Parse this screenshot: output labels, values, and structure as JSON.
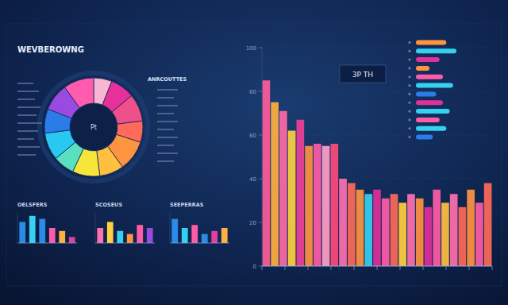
{
  "header": {
    "title": "WEVBEROWNG"
  },
  "chart_data": [
    {
      "type": "pie",
      "title": "ANRCOUTTES",
      "annotations": [
        "Pt"
      ],
      "values": [
        6,
        8,
        9,
        7,
        10,
        8,
        9,
        7,
        9,
        8,
        9,
        10
      ],
      "colors": [
        "#f9b6d2",
        "#e8309a",
        "#f0508a",
        "#ff6a5a",
        "#ff9440",
        "#ffc040",
        "#f6e63a",
        "#58e0c0",
        "#28c8f0",
        "#2c7ce8",
        "#9a4ae0",
        "#ff5cb0"
      ]
    },
    {
      "type": "bar",
      "title": "OELSFERS",
      "categories": [
        null,
        null,
        null,
        null,
        null,
        null
      ],
      "values": [
        7,
        9,
        8,
        5,
        4,
        2
      ],
      "ylim": [
        0,
        10
      ],
      "tick_labels": false,
      "colors": [
        "#2b8ce8",
        "#36d0f0",
        "#2b8ce8",
        "#ff5ca8",
        "#ffb040",
        "#e040a0"
      ]
    },
    {
      "type": "bar",
      "title": "SCOSEUS",
      "categories": [
        null,
        null,
        null,
        null,
        null,
        null
      ],
      "values": [
        5,
        7,
        4,
        3,
        6,
        5
      ],
      "ylim": [
        0,
        10
      ],
      "tick_labels": false,
      "colors": [
        "#ff70b0",
        "#ffd040",
        "#36d0f0",
        "#ff9440",
        "#ff5ca8",
        "#9a4ae0"
      ]
    },
    {
      "type": "bar",
      "title": "SEEPERRAS",
      "categories": [
        null,
        null,
        null,
        null,
        null,
        null
      ],
      "values": [
        8,
        5,
        6,
        3,
        4,
        5
      ],
      "ylim": [
        0,
        10
      ],
      "tick_labels": false,
      "colors": [
        "#2b8ce8",
        "#36d0f0",
        "#ff5ca8",
        "#2b8ce8",
        "#e040a0",
        "#ffb040"
      ]
    },
    {
      "type": "bar",
      "annotations": [
        "3P TH"
      ],
      "categories": [
        null,
        null,
        null,
        null,
        null,
        null,
        null,
        null,
        null,
        null,
        null,
        null,
        null,
        null,
        null,
        null,
        null,
        null,
        null,
        null,
        null,
        null,
        null,
        null,
        null,
        null,
        null
      ],
      "values": [
        85,
        75,
        71,
        62,
        67,
        55,
        56,
        55,
        56,
        40,
        38,
        35,
        33,
        35,
        31,
        33,
        29,
        33,
        31,
        27,
        35,
        29,
        33,
        27,
        35,
        29,
        38
      ],
      "colors": [
        "#ff5c9a",
        "#ffb040",
        "#ff6aa8",
        "#ffd040",
        "#f0409a",
        "#ff9440",
        "#ff5ca8",
        "#ffa0c8",
        "#ff4a7a",
        "#ff70b0",
        "#ff6a5a",
        "#ff9440",
        "#36d0f0",
        "#e0309a",
        "#ff5ca8",
        "#ff6a5a",
        "#ffd040",
        "#ff70b0",
        "#ff9440",
        "#e0309a",
        "#ff5ca8",
        "#ffc040",
        "#ff70b0",
        "#ff6a5a",
        "#ff9440",
        "#ff5ca8",
        "#ff6a5a"
      ],
      "ylim": [
        0,
        100
      ],
      "yticks": [
        0,
        20,
        40,
        60,
        80,
        100
      ],
      "grid": true
    },
    {
      "type": "bar",
      "orientation": "horizontal",
      "tick_labels": false,
      "categories": [
        null,
        null,
        null,
        null,
        null,
        null,
        null,
        null,
        null,
        null,
        null,
        null
      ],
      "values": [
        45,
        60,
        35,
        20,
        40,
        55,
        30,
        40,
        50,
        35,
        45,
        25
      ],
      "xlim": [
        0,
        100
      ],
      "colors": [
        "#ff9440",
        "#36d0f0",
        "#e0309a",
        "#ff9440",
        "#ff5ca8",
        "#36d0f0",
        "#2c7ce8",
        "#e0309a",
        "#36d0f0",
        "#ff5ca8",
        "#36d0f0",
        "#2c7ce8"
      ]
    }
  ]
}
